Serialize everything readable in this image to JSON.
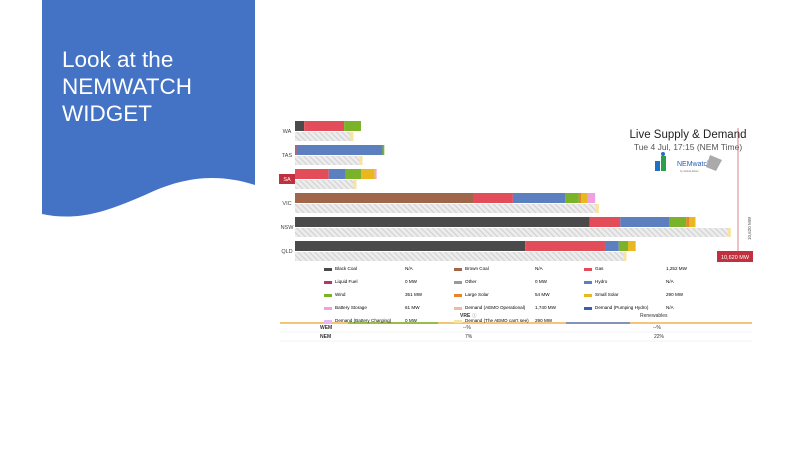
{
  "slide": {
    "title": "Look at the NEMWATCH WIDGET",
    "bg_blue": "#4472C4"
  },
  "widget": {
    "header_title": "Live Supply & Demand",
    "header_subtitle": "Tue 4 Jul, 17:15 (NEM Time)",
    "logo_text": "NEMwatch",
    "logo_subtext": "by Global-Roam",
    "demand_marker_label": "10,620 MW",
    "scale_label": "10,620 MW",
    "colors": {
      "black_coal": "#4a4a4a",
      "brown_coal": "#a0664a",
      "gas": "#e34d5a",
      "liquid_fuel": "#b5336e",
      "other": "#9a9a9a",
      "hydro": "#5b7fbf",
      "wind": "#7ab32a",
      "large_solar": "#e8842a",
      "small_solar": "#e8b820",
      "battery": "#f0a0e0",
      "demand_aemo": "#f4b8a0",
      "demand_unseen": "#f8e4a0",
      "pumping": "#3a5fb0",
      "battery_charging": "#e8b8f0",
      "marker": "#c0303e"
    }
  },
  "chart_data": {
    "type": "bar",
    "categories": [
      "WA",
      "TAS",
      "SA",
      "VIC",
      "NSW",
      "QLD"
    ],
    "highlighted_category": "SA",
    "series": [
      {
        "name": "Black Coal",
        "values": [
          300,
          0,
          0,
          0,
          9600,
          7500
        ]
      },
      {
        "name": "Brown Coal",
        "values": [
          0,
          0,
          0,
          5800,
          0,
          0
        ]
      },
      {
        "name": "Gas",
        "values": [
          1300,
          50,
          1100,
          1300,
          1000,
          2600
        ]
      },
      {
        "name": "Hydro",
        "values": [
          0,
          2800,
          550,
          1700,
          1600,
          450
        ]
      },
      {
        "name": "Wind",
        "values": [
          550,
          60,
          500,
          450,
          550,
          300
        ]
      },
      {
        "name": "Large Solar",
        "values": [
          0,
          0,
          0,
          80,
          100,
          0
        ]
      },
      {
        "name": "Small Solar",
        "values": [
          0,
          0,
          450,
          200,
          200,
          250
        ]
      },
      {
        "name": "Battery Storage",
        "values": [
          0,
          0,
          60,
          250,
          0,
          0
        ]
      }
    ],
    "demand": [
      1900,
      2200,
      2000,
      9900,
      14200,
      10800
    ],
    "xlim": [
      0,
      14500
    ]
  },
  "legend": [
    {
      "name": "Black Coal",
      "value": "N/A",
      "color_key": "black_coal"
    },
    {
      "name": "Brown Coal",
      "value": "N/A",
      "color_key": "brown_coal"
    },
    {
      "name": "Gas",
      "value": "1,252 MW",
      "color_key": "gas"
    },
    {
      "name": "Liquid Fuel",
      "value": "0 MW",
      "color_key": "liquid_fuel"
    },
    {
      "name": "Other",
      "value": "0 MW",
      "color_key": "other"
    },
    {
      "name": "Hydro",
      "value": "N/A",
      "color_key": "hydro"
    },
    {
      "name": "Wind",
      "value": "351 MW",
      "color_key": "wind"
    },
    {
      "name": "Large Solar",
      "value": "54 MW",
      "color_key": "large_solar"
    },
    {
      "name": "Small Solar",
      "value": "290 MW",
      "color_key": "small_solar"
    },
    {
      "name": "Battery Storage",
      "value": "61 MW",
      "color_key": "battery"
    },
    {
      "name": "Demand (AEMO Operational)",
      "value": "1,740 MW",
      "color_key": "demand_aemo"
    },
    {
      "name": "Demand (Pumping Hydro)",
      "value": "N/A",
      "color_key": "pumping"
    },
    {
      "name": "Demand (Battery Charging)",
      "value": "0 MW",
      "color_key": "battery_charging"
    },
    {
      "name": "Demand (The AEMO can't see)",
      "value": "290 MW",
      "color_key": "demand_unseen"
    }
  ],
  "table": {
    "col_vre": "VRE",
    "col_renewables": "Renewables",
    "rows": [
      {
        "label": "WEM",
        "vre": "--%",
        "renewables": "--%"
      },
      {
        "label": "NEM",
        "vre": "7%",
        "renewables": "22%"
      }
    ]
  }
}
